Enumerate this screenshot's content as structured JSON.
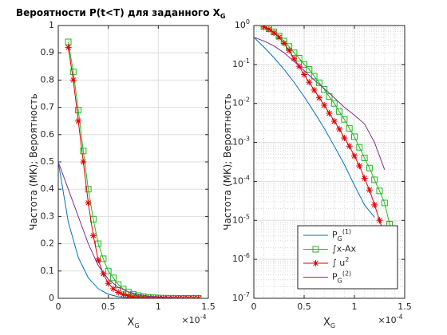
{
  "chart_data": [
    {
      "type": "line",
      "title": "Вероятности P(t<T) для заданного X",
      "title_sub": "G",
      "ylabel": "Частота (МК); Вероятность",
      "xlabel": "X",
      "xlabel_sub": "G",
      "x_multiplier": "×10",
      "x_multiplier_sup": "-4",
      "xlim": [
        0,
        1.5
      ],
      "xticks": [
        0,
        0.5,
        1,
        1.5
      ],
      "ylim": [
        0,
        1
      ],
      "yticks": [
        0,
        0.1,
        0.2,
        0.3,
        0.4,
        0.5,
        0.6,
        0.7,
        0.8,
        0.9,
        1
      ],
      "grid": true,
      "series": [
        {
          "color": "#0072bd",
          "x": [
            0,
            0.1,
            0.2,
            0.3,
            0.4,
            0.5,
            0.6,
            0.7,
            0.8,
            0.9,
            1,
            1.1,
            1.2
          ],
          "values": [
            0.5,
            0.28,
            0.15,
            0.075,
            0.035,
            0.015,
            0.006,
            0.0023,
            0.0008,
            0.00027,
            8e-05,
            2.5e-05,
            1.2e-05
          ]
        },
        {
          "color": "#22b822",
          "marker": "square",
          "x": [
            0.1,
            0.15,
            0.2,
            0.25,
            0.3,
            0.35,
            0.4,
            0.45,
            0.5,
            0.55,
            0.6,
            0.65,
            0.7,
            0.75,
            0.8,
            0.85,
            0.9,
            0.95,
            1,
            1.05,
            1.1,
            1.15,
            1.2,
            1.25,
            1.3,
            1.35,
            1.4
          ],
          "values": [
            0.94,
            0.83,
            0.69,
            0.54,
            0.4,
            0.29,
            0.2,
            0.145,
            0.1,
            0.075,
            0.05,
            0.034,
            0.023,
            0.015,
            0.01,
            0.0062,
            0.0039,
            0.0023,
            0.0014,
            0.00075,
            0.0004,
            0.00022,
            0.00011,
            5.7e-05,
            2.8e-05,
            8e-06,
            2.3e-06
          ]
        },
        {
          "color": "#e00000",
          "marker": "asterisk",
          "x": [
            0.1,
            0.15,
            0.2,
            0.25,
            0.3,
            0.35,
            0.4,
            0.45,
            0.5,
            0.55,
            0.6,
            0.65,
            0.7,
            0.75,
            0.8,
            0.85,
            0.9,
            0.95,
            1,
            1.05,
            1.1,
            1.15,
            1.2,
            1.25,
            1.3,
            1.35,
            1.4
          ],
          "values": [
            0.92,
            0.8,
            0.65,
            0.5,
            0.35,
            0.23,
            0.14,
            0.09,
            0.055,
            0.035,
            0.022,
            0.014,
            0.009,
            0.0056,
            0.0035,
            0.0022,
            0.0013,
            0.0008,
            0.00045,
            0.00025,
            0.00012,
            6e-05,
            2.5e-05,
            1e-05,
            4e-06,
            1.4e-06,
            3.5e-07
          ]
        },
        {
          "color": "#7e2f8e",
          "x": [
            0,
            0.1,
            0.2,
            0.3,
            0.4,
            0.5,
            0.6,
            0.7,
            0.8,
            0.9,
            1,
            1.1,
            1.2,
            1.3
          ],
          "values": [
            0.5,
            0.4,
            0.3,
            0.2,
            0.12,
            0.07,
            0.04,
            0.024,
            0.014,
            0.008,
            0.005,
            0.003,
            0.001,
            0.0002
          ]
        }
      ]
    },
    {
      "type": "line",
      "yscale": "log",
      "minor_grid": true,
      "legend": "southeast",
      "ylabel": "Частота (МК); Вероятность",
      "xlabel": "X",
      "xlabel_sub": "G",
      "x_multiplier": "×10",
      "x_multiplier_sup": "-4",
      "xlim": [
        0,
        1.5
      ],
      "xticks": [
        0,
        0.5,
        1,
        1.5
      ],
      "ylim": [
        1e-07,
        1
      ],
      "yticks": [
        {
          "value": 1e-07,
          "label": "10",
          "label_sup": "-7"
        },
        {
          "value": 1e-06,
          "label": "10",
          "label_sup": "-6"
        },
        {
          "value": 1e-05,
          "label": "10",
          "label_sup": "-5"
        },
        {
          "value": 0.0001,
          "label": "10",
          "label_sup": "-4"
        },
        {
          "value": 0.001,
          "label": "10",
          "label_sup": "-3"
        },
        {
          "value": 0.01,
          "label": "10",
          "label_sup": "-2"
        },
        {
          "value": 0.1,
          "label": "10",
          "label_sup": "-1"
        },
        {
          "value": 1,
          "label": "10",
          "label_sup": "0"
        }
      ],
      "grid": true,
      "series": [
        {
          "name": "P",
          "name_sub": "G",
          "name_sup": "(1)",
          "color": "#0072bd",
          "x": [
            0,
            0.1,
            0.2,
            0.3,
            0.4,
            0.5,
            0.6,
            0.7,
            0.8,
            0.9,
            1,
            1.1,
            1.2
          ],
          "values": [
            0.5,
            0.28,
            0.15,
            0.075,
            0.035,
            0.015,
            0.006,
            0.0023,
            0.0008,
            0.00027,
            8e-05,
            2.5e-05,
            1.2e-05
          ]
        },
        {
          "name": "∫x-Ax",
          "color": "#22b822",
          "marker": "square",
          "x": [
            0.1,
            0.15,
            0.2,
            0.25,
            0.3,
            0.35,
            0.4,
            0.45,
            0.5,
            0.55,
            0.6,
            0.65,
            0.7,
            0.75,
            0.8,
            0.85,
            0.9,
            0.95,
            1,
            1.05,
            1.1,
            1.15,
            1.2,
            1.25,
            1.3,
            1.35,
            1.4
          ],
          "values": [
            0.94,
            0.83,
            0.69,
            0.54,
            0.4,
            0.29,
            0.2,
            0.145,
            0.1,
            0.075,
            0.05,
            0.034,
            0.023,
            0.015,
            0.01,
            0.0062,
            0.0039,
            0.0023,
            0.0014,
            0.00075,
            0.0004,
            0.00022,
            0.00011,
            5.7e-05,
            2.8e-05,
            8e-06,
            2.3e-06
          ]
        },
        {
          "name": "∫ u",
          "name_sup": "2",
          "color": "#e00000",
          "marker": "asterisk",
          "x": [
            0.1,
            0.15,
            0.2,
            0.25,
            0.3,
            0.35,
            0.4,
            0.45,
            0.5,
            0.55,
            0.6,
            0.65,
            0.7,
            0.75,
            0.8,
            0.85,
            0.9,
            0.95,
            1,
            1.05,
            1.1,
            1.15,
            1.2,
            1.25,
            1.3,
            1.35,
            1.4
          ],
          "values": [
            0.92,
            0.8,
            0.65,
            0.5,
            0.35,
            0.23,
            0.14,
            0.09,
            0.055,
            0.035,
            0.022,
            0.014,
            0.009,
            0.0056,
            0.0035,
            0.0022,
            0.0013,
            0.0008,
            0.00045,
            0.00025,
            0.00012,
            6e-05,
            2.5e-05,
            1e-05,
            4e-06,
            1.4e-06,
            3.5e-07
          ]
        },
        {
          "name": "P",
          "name_sub": "G",
          "name_sup": "(2)",
          "color": "#7e2f8e",
          "x": [
            0,
            0.1,
            0.2,
            0.3,
            0.4,
            0.5,
            0.6,
            0.7,
            0.8,
            0.9,
            1,
            1.1,
            1.2,
            1.3
          ],
          "values": [
            0.5,
            0.4,
            0.3,
            0.2,
            0.12,
            0.07,
            0.04,
            0.024,
            0.014,
            0.008,
            0.005,
            0.003,
            0.001,
            0.0002
          ]
        }
      ]
    }
  ]
}
